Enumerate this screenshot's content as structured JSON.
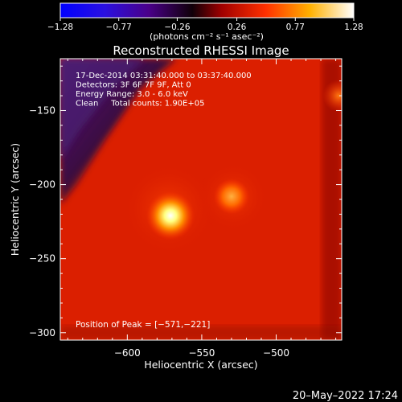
{
  "chart_data": {
    "type": "heatmap",
    "title": "Reconstructed RHESSI Image",
    "xlabel": "Heliocentric X (arcsec)",
    "ylabel": "Heliocentric Y (arcsec)",
    "xlim": [
      -645,
      -456
    ],
    "ylim": [
      -305,
      -115
    ],
    "x_ticks": [
      -600,
      -550,
      -500
    ],
    "y_ticks": [
      -150,
      -200,
      -250,
      -300
    ],
    "x_tick_labels": [
      "−600",
      "−550",
      "−500"
    ],
    "y_tick_labels": [
      "−150",
      "−200",
      "−250",
      "−300"
    ],
    "colorbar": {
      "range": [
        -1.28,
        1.28
      ],
      "ticks": [
        -1.28,
        -0.77,
        -0.26,
        0.26,
        0.77,
        1.28
      ],
      "tick_labels": [
        "−1.28",
        "−0.77",
        "−0.26",
        "0.26",
        "0.77",
        "1.28"
      ],
      "units": "(photons cm⁻² s⁻¹ asec⁻²)",
      "colors": [
        "#0000ff",
        "#4a00a0",
        "#000000",
        "#ff0000",
        "#ffff00",
        "#ffffff"
      ]
    },
    "annotations": [
      "17-Dec-2014 03:31:40.000 to 03:37:40.000",
      "Detectors: 3F 6F 7F 9F, Att 0",
      "Energy Range: 3.0 - 6.0 keV",
      "Clean     Total counts: 1.90E+05"
    ],
    "peak_label": "Position of Peak = [−571,−221]",
    "peak": {
      "x": -571,
      "y": -221
    },
    "sources": [
      {
        "x": -571,
        "y": -221,
        "value": 1.28
      },
      {
        "x": -530,
        "y": -208,
        "value": 0.85
      },
      {
        "x": -458,
        "y": -140,
        "value": 0.75
      }
    ],
    "background_level": 0.3
  },
  "timestamp": "20–May–2022 17:24"
}
